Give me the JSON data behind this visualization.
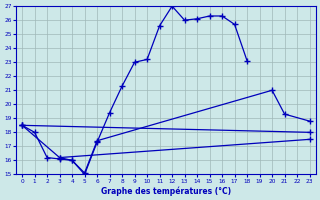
{
  "xlabel": "Graphe des températures (°C)",
  "xlim": [
    -0.5,
    23.5
  ],
  "ylim": [
    15,
    27
  ],
  "yticks": [
    15,
    16,
    17,
    18,
    19,
    20,
    21,
    22,
    23,
    24,
    25,
    26,
    27
  ],
  "xticks": [
    0,
    1,
    2,
    3,
    4,
    5,
    6,
    7,
    8,
    9,
    10,
    11,
    12,
    13,
    14,
    15,
    16,
    17,
    18,
    19,
    20,
    21,
    22,
    23
  ],
  "background_color": "#cde8e8",
  "grid_color": "#a0b8b8",
  "line_color": "#0000bb",
  "line1_x": [
    0,
    1,
    2,
    3,
    4,
    5,
    6,
    7,
    8,
    9,
    10,
    11,
    12,
    13,
    14,
    15,
    16,
    17,
    18
  ],
  "line1_y": [
    18.5,
    18.0,
    16.2,
    16.1,
    16.0,
    15.0,
    17.3,
    19.4,
    21.3,
    23.0,
    23.2,
    25.6,
    27.0,
    26.0,
    26.1,
    26.3,
    26.3,
    25.7,
    23.1
  ],
  "line2_x": [
    0,
    3,
    4,
    5,
    6,
    20,
    21,
    23
  ],
  "line2_y": [
    18.5,
    16.2,
    16.0,
    15.1,
    17.4,
    21.0,
    19.3,
    18.8
  ],
  "line3_x": [
    0,
    23
  ],
  "line3_y": [
    18.5,
    18.0
  ],
  "line4_x": [
    3,
    23
  ],
  "line4_y": [
    16.2,
    17.5
  ]
}
